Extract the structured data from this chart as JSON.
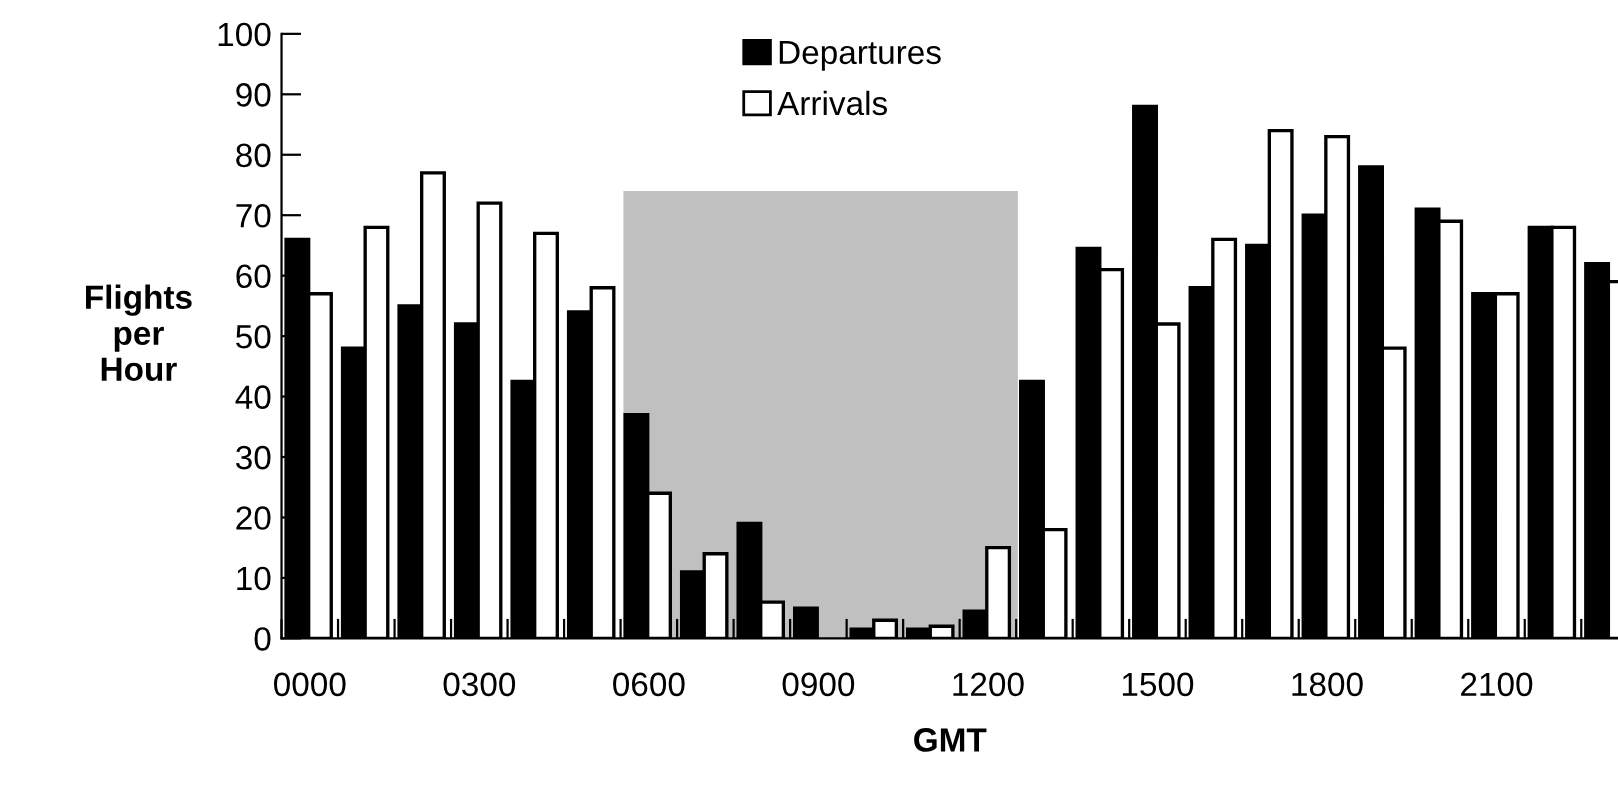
{
  "chart_data": {
    "type": "bar",
    "xlabel": "GMT",
    "ylabel": "Flights\nper\nHour",
    "categories": [
      "0000",
      null,
      null,
      "0300",
      null,
      null,
      "0600",
      null,
      null,
      "0900",
      null,
      null,
      "1200",
      null,
      null,
      "1500",
      null,
      null,
      "1800",
      null,
      null,
      "2100",
      null,
      null
    ],
    "series": [
      {
        "name": "Departures",
        "color": "#000000",
        "values": [
          66,
          48,
          55,
          52,
          42.5,
          54,
          37,
          11,
          19,
          5,
          1.5,
          1.5,
          4.5,
          42.5,
          64.5,
          88,
          58,
          65,
          70,
          78,
          71,
          57,
          68,
          62
        ]
      },
      {
        "name": "Arrivals",
        "color": "#ffffff",
        "values": [
          57,
          68,
          77,
          72,
          67,
          58,
          24,
          14,
          6,
          null,
          3,
          2,
          15,
          18,
          61,
          52,
          66,
          84,
          83,
          48,
          69,
          57,
          68,
          59
        ]
      }
    ],
    "ylim": [
      0,
      100
    ],
    "yticks": [
      0,
      10,
      20,
      30,
      40,
      50,
      60,
      70,
      80,
      90,
      100
    ],
    "grid": false,
    "legend": "top"
  }
}
